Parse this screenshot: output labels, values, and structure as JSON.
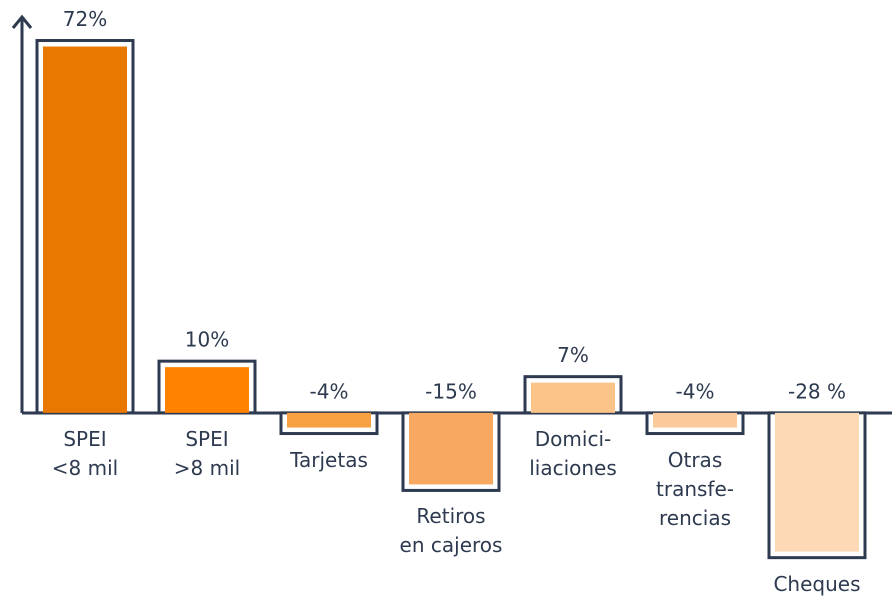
{
  "chart_data": {
    "type": "bar",
    "categories": [
      "SPEI\n<8 mil",
      "SPEI\n>8 mil",
      "Tarjetas",
      "Retiros\nen cajeros",
      "Domici-\nliaciones",
      "Otras\ntransfe-\nrencias",
      "Cheques"
    ],
    "values": [
      72,
      10,
      -4,
      -15,
      7,
      -4,
      -28
    ],
    "value_labels": [
      "72%",
      "10%",
      "-4%",
      "-15%",
      "7%",
      "-4%",
      "-28 %"
    ],
    "colors": [
      "#e87800",
      "#ff8200",
      "#f7a040",
      "#f8a860",
      "#fdc48a",
      "#fbc99a",
      "#fdd9b6"
    ],
    "ylim": [
      -30,
      75
    ]
  }
}
